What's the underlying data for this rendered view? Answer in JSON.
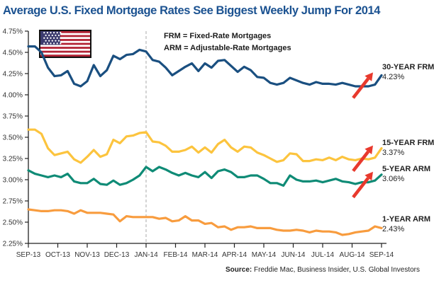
{
  "title": "Average U.S. Fixed Mortgage Rates See Biggest Weekly Jump For 2014",
  "legend": {
    "line1": "FRM = Fixed-Rate Mortgages",
    "line2": "ARM = Adjustable-Rate Mortgages"
  },
  "source": {
    "label": "Source:",
    "text": " Freddie Mac, Business Insider, U.S. Global Investors"
  },
  "icons": {
    "flag": "us-flag"
  },
  "colors": {
    "title": "#1b5291",
    "axis": "#222222",
    "tick_text": "#333333",
    "dashed_line": "#aaaaaa",
    "arrow_red": "#e8392d"
  },
  "chart_data": {
    "type": "line",
    "x_tick_labels": [
      "SEP-13",
      "OCT-13",
      "NOV-13",
      "DEC-13",
      "JAN-14",
      "FEB-14",
      "MAR-14",
      "APR-14",
      "MAY-14",
      "JUN-14",
      "JUL-14",
      "AUG-14",
      "SEP-14"
    ],
    "y_tick_labels": [
      "4.75%",
      "4.50%",
      "4.25%",
      "4.00%",
      "3.75%",
      "3.50%",
      "3.25%",
      "3.00%",
      "2.75%",
      "2.50%",
      "2.25%"
    ],
    "ylim": [
      2.25,
      4.75
    ],
    "grid": false,
    "legend_position": "right-of-line-ends",
    "dashed_vline_at": "JAN-14",
    "series": [
      {
        "name": "30-YEAR FRM",
        "end_label": "4.23%",
        "color": "#1a4f80",
        "arrow": true,
        "values": [
          4.57,
          4.57,
          4.5,
          4.32,
          4.22,
          4.23,
          4.28,
          4.13,
          4.1,
          4.16,
          4.35,
          4.22,
          4.29,
          4.46,
          4.42,
          4.47,
          4.48,
          4.53,
          4.51,
          4.41,
          4.39,
          4.32,
          4.23,
          4.28,
          4.33,
          4.37,
          4.28,
          4.37,
          4.32,
          4.4,
          4.41,
          4.34,
          4.27,
          4.33,
          4.29,
          4.21,
          4.2,
          4.14,
          4.12,
          4.14,
          4.2,
          4.17,
          4.14,
          4.12,
          4.15,
          4.13,
          4.13,
          4.12,
          4.14,
          4.12,
          4.1,
          4.1,
          4.1,
          4.12,
          4.23
        ]
      },
      {
        "name": "15-YEAR FRM",
        "end_label": "3.37%",
        "color": "#fcc43e",
        "arrow": true,
        "values": [
          3.59,
          3.59,
          3.54,
          3.37,
          3.29,
          3.31,
          3.33,
          3.24,
          3.2,
          3.27,
          3.35,
          3.27,
          3.3,
          3.47,
          3.43,
          3.51,
          3.52,
          3.55,
          3.56,
          3.45,
          3.44,
          3.4,
          3.33,
          3.33,
          3.35,
          3.39,
          3.32,
          3.38,
          3.32,
          3.42,
          3.47,
          3.38,
          3.33,
          3.39,
          3.38,
          3.32,
          3.29,
          3.25,
          3.21,
          3.23,
          3.31,
          3.3,
          3.22,
          3.22,
          3.24,
          3.23,
          3.26,
          3.23,
          3.27,
          3.24,
          3.23,
          3.25,
          3.24,
          3.26,
          3.37
        ]
      },
      {
        "name": "5-YEAR ARM",
        "end_label": "3.06%",
        "color": "#0f8b76",
        "arrow": true,
        "values": [
          3.11,
          3.07,
          3.05,
          3.03,
          3.05,
          3.03,
          3.07,
          2.98,
          2.96,
          2.96,
          3.01,
          2.95,
          2.94,
          2.99,
          2.94,
          2.96,
          3.0,
          3.05,
          3.15,
          3.1,
          3.15,
          3.12,
          3.08,
          3.05,
          3.08,
          3.05,
          3.03,
          3.09,
          3.02,
          3.1,
          3.12,
          3.09,
          3.03,
          3.03,
          3.05,
          3.05,
          3.01,
          2.96,
          2.96,
          2.93,
          3.05,
          3.0,
          2.98,
          2.98,
          2.99,
          2.97,
          2.99,
          3.01,
          2.98,
          2.97,
          2.95,
          2.97,
          2.97,
          2.99,
          3.06
        ]
      },
      {
        "name": "1-YEAR ARM",
        "end_label": "2.43%",
        "color": "#f89c3e",
        "arrow": false,
        "values": [
          2.65,
          2.64,
          2.63,
          2.63,
          2.64,
          2.64,
          2.63,
          2.6,
          2.64,
          2.61,
          2.61,
          2.61,
          2.6,
          2.59,
          2.51,
          2.57,
          2.56,
          2.56,
          2.56,
          2.56,
          2.54,
          2.55,
          2.51,
          2.52,
          2.57,
          2.52,
          2.52,
          2.48,
          2.49,
          2.44,
          2.45,
          2.41,
          2.44,
          2.44,
          2.45,
          2.43,
          2.43,
          2.43,
          2.41,
          2.4,
          2.4,
          2.41,
          2.4,
          2.38,
          2.4,
          2.39,
          2.39,
          2.38,
          2.35,
          2.36,
          2.38,
          2.39,
          2.4,
          2.45,
          2.43
        ]
      }
    ]
  }
}
